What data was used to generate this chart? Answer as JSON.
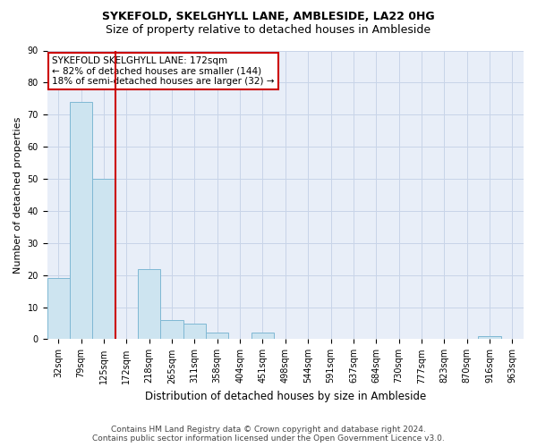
{
  "title": "SYKEFOLD, SKELGHYLL LANE, AMBLESIDE, LA22 0HG",
  "subtitle": "Size of property relative to detached houses in Ambleside",
  "xlabel": "Distribution of detached houses by size in Ambleside",
  "ylabel": "Number of detached properties",
  "annotation_line1": "SYKEFOLD SKELGHYLL LANE: 172sqm",
  "annotation_line2": "← 82% of detached houses are smaller (144)",
  "annotation_line3": "18% of semi-detached houses are larger (32) →",
  "footer_line1": "Contains HM Land Registry data © Crown copyright and database right 2024.",
  "footer_line2": "Contains public sector information licensed under the Open Government Licence v3.0.",
  "bin_labels": [
    "32sqm",
    "79sqm",
    "125sqm",
    "172sqm",
    "218sqm",
    "265sqm",
    "311sqm",
    "358sqm",
    "404sqm",
    "451sqm",
    "498sqm",
    "544sqm",
    "591sqm",
    "637sqm",
    "684sqm",
    "730sqm",
    "777sqm",
    "823sqm",
    "870sqm",
    "916sqm",
    "963sqm"
  ],
  "bar_values": [
    19,
    74,
    50,
    0,
    22,
    6,
    5,
    2,
    0,
    2,
    0,
    0,
    0,
    0,
    0,
    0,
    0,
    0,
    0,
    1,
    0
  ],
  "bar_fill_color": "#cde4f0",
  "bar_edge_color": "#7fb8d4",
  "grid_color": "#c8d4e8",
  "background_color": "#e8eef8",
  "red_line_color": "#cc0000",
  "annotation_box_color": "#ffffff",
  "annotation_box_edge": "#cc0000",
  "red_line_index": 3,
  "ylim": [
    0,
    90
  ],
  "yticks": [
    0,
    10,
    20,
    30,
    40,
    50,
    60,
    70,
    80,
    90
  ],
  "title_fontsize": 9,
  "subtitle_fontsize": 9,
  "ylabel_fontsize": 8,
  "xlabel_fontsize": 8.5,
  "tick_fontsize": 7,
  "annotation_fontsize": 7.5,
  "footer_fontsize": 6.5
}
